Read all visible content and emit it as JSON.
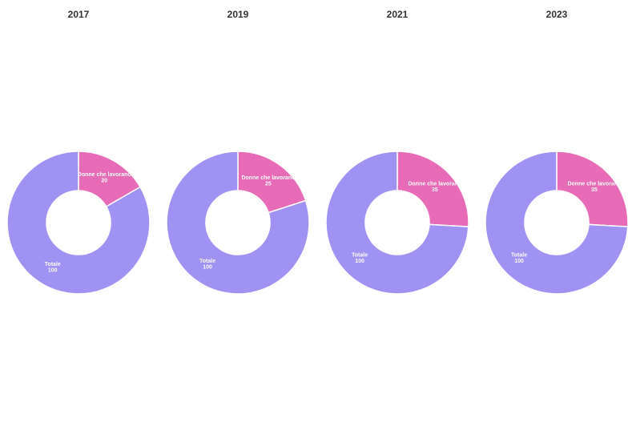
{
  "chart_data": [
    {
      "type": "pie",
      "title": "2017",
      "hole": 0.45,
      "labels": [
        "Donne che lavorano",
        "Totale"
      ],
      "values": [
        20,
        100
      ],
      "colors": [
        "#e76bb7",
        "#a092f3"
      ]
    },
    {
      "type": "pie",
      "title": "2019",
      "hole": 0.45,
      "labels": [
        "Donne che lavorano",
        "Totale"
      ],
      "values": [
        25,
        100
      ],
      "colors": [
        "#e76bb7",
        "#a092f3"
      ]
    },
    {
      "type": "pie",
      "title": "2021",
      "hole": 0.45,
      "labels": [
        "Donne che lavorano",
        "Totale"
      ],
      "values": [
        35,
        100
      ],
      "colors": [
        "#e76bb7",
        "#a092f3"
      ]
    },
    {
      "type": "pie",
      "title": "2023",
      "hole": 0.45,
      "labels": [
        "Donne che lavorano",
        "Totale"
      ],
      "values": [
        35,
        100
      ],
      "colors": [
        "#e76bb7",
        "#a092f3"
      ]
    }
  ]
}
